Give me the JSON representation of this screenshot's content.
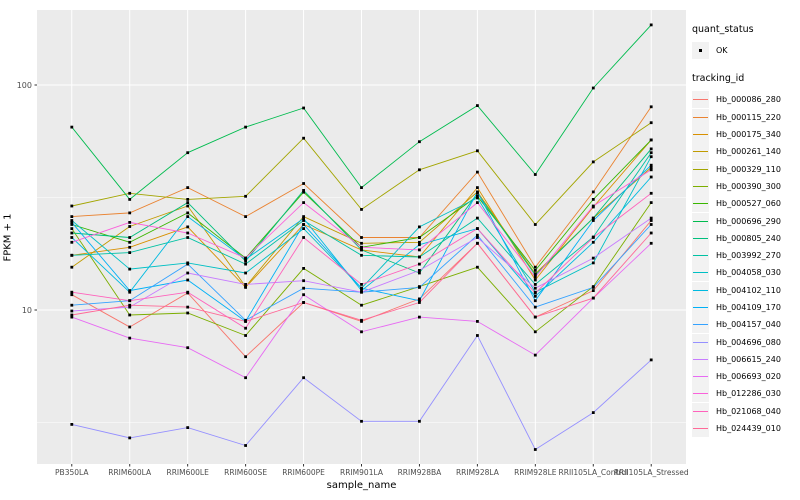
{
  "figure": {
    "colors": {
      "panel_bg": "#EBEBEB",
      "grid": "#FFFFFF",
      "tick_text": "#4D4D4D",
      "tick_mark": "#333333",
      "point": "#000000",
      "legend_key_bg": "#F2F2F2"
    },
    "legend": {
      "quant_status_title": "quant_status",
      "quant_ok_label": "OK",
      "tracking_id_title": "tracking_id"
    }
  },
  "chart_data": {
    "type": "line",
    "title": "",
    "xlabel": "sample_name",
    "ylabel": "FPKM + 1",
    "log_y": true,
    "ylim": [
      2.1,
      213
    ],
    "y_major_ticks": [
      10,
      100
    ],
    "y_tick_labels": [
      "10",
      "100"
    ],
    "y_minor_gridlines": [
      3.1623,
      31.623
    ],
    "grid": true,
    "legend_position": "right",
    "point_marker": "black-square (quant_status = OK)",
    "categories": [
      "PB350LA",
      "RRIM600LA",
      "RRIM600LE",
      "RRIM600SE",
      "RRIM600PE",
      "RRIM901LA",
      "RRIM928BA",
      "RRIM928LA",
      "RRIM928LE",
      "RRII105LA_Control",
      "RRII105LA_Stressed"
    ],
    "series": [
      {
        "name": "Hb_000086_280",
        "color": "#F8766D",
        "values": [
          11.7,
          8.4,
          11.9,
          6.2,
          10.8,
          8.9,
          11.2,
          19.8,
          9.3,
          12.2,
          25
        ]
      },
      {
        "name": "Hb_000115_220",
        "color": "#EA8331",
        "values": [
          26,
          27,
          35,
          26,
          36.5,
          21,
          21,
          41,
          15.5,
          33.5,
          80
        ]
      },
      {
        "name": "Hb_000175_340",
        "color": "#D89000",
        "values": [
          17.5,
          19,
          23.4,
          12.6,
          24,
          18.5,
          17.2,
          35,
          13.6,
          28.7,
          57
        ]
      },
      {
        "name": "Hb_000261_140",
        "color": "#C09B00",
        "values": [
          15.5,
          23.5,
          29,
          12.7,
          26,
          19.8,
          20,
          33.5,
          14.5,
          25.6,
          43
        ]
      },
      {
        "name": "Hb_000329_110",
        "color": "#A3A500",
        "values": [
          29,
          33,
          31,
          32,
          58,
          28,
          42,
          51,
          24,
          45.5,
          68
        ]
      },
      {
        "name": "Hb_000390_300",
        "color": "#7CAE00",
        "values": [
          23,
          9.5,
          9.7,
          7.7,
          15.3,
          10.5,
          12.7,
          15.5,
          8.0,
          12.7,
          30
        ]
      },
      {
        "name": "Hb_000527_060",
        "color": "#39B600",
        "values": [
          24,
          20,
          27,
          17,
          33.4,
          19,
          21,
          32,
          15,
          31,
          57
        ]
      },
      {
        "name": "Hb_000696_290",
        "color": "#00BB4E",
        "values": [
          65,
          31,
          50,
          65,
          79,
          35,
          56,
          81,
          40,
          97,
          185
        ]
      },
      {
        "name": "Hb_000805_240",
        "color": "#00BF7D",
        "values": [
          22,
          21,
          30,
          16.5,
          34,
          18.5,
          14.6,
          33,
          14.3,
          25.6,
          52
        ]
      },
      {
        "name": "Hb_003992_270",
        "color": "#00C1A3",
        "values": [
          17.5,
          18,
          21,
          16,
          25,
          17.5,
          17.2,
          25.6,
          13,
          21.1,
          50
        ]
      },
      {
        "name": "Hb_004058_030",
        "color": "#00BFC4",
        "values": [
          25,
          15.2,
          16.2,
          14.6,
          23,
          12.5,
          23.4,
          31.5,
          12,
          16.2,
          48
        ]
      },
      {
        "name": "Hb_004102_110",
        "color": "#00BAE0",
        "values": [
          21,
          12,
          26,
          16.8,
          25.5,
          12.2,
          19.5,
          23,
          11.5,
          20,
          39
        ]
      },
      {
        "name": "Hb_004109_170",
        "color": "#00B0F6",
        "values": [
          24.5,
          12.2,
          13.6,
          8.9,
          24,
          12.5,
          11,
          33.5,
          11,
          25,
          44
        ]
      },
      {
        "name": "Hb_004157_040",
        "color": "#35A2FF",
        "values": [
          10.5,
          11,
          16,
          9.0,
          12.5,
          12,
          12.6,
          21.5,
          10.3,
          12.6,
          24
        ]
      },
      {
        "name": "Hb_004696_080",
        "color": "#9590FF",
        "values": [
          3.1,
          2.7,
          3.0,
          2.5,
          5.0,
          3.2,
          3.2,
          7.7,
          2.4,
          3.5,
          6.0
        ]
      },
      {
        "name": "Hb_006615_240",
        "color": "#C77CFF",
        "values": [
          9.9,
          10.3,
          14.6,
          13,
          13.5,
          12,
          15,
          21,
          12.5,
          17,
          25.6
        ]
      },
      {
        "name": "Hb_006693_020",
        "color": "#E76BF3",
        "values": [
          9.3,
          7.5,
          6.8,
          5.0,
          11.7,
          8.0,
          9.3,
          8.9,
          6.3,
          11.3,
          19.8
        ]
      },
      {
        "name": "Hb_012286_030",
        "color": "#FA62DB",
        "values": [
          20,
          24.5,
          22,
          17,
          30,
          19,
          18.5,
          30,
          14,
          29,
          42
        ]
      },
      {
        "name": "Hb_021068_040",
        "color": "#FF62BC",
        "values": [
          12,
          11,
          12,
          8.3,
          21,
          13,
          16,
          23,
          11.9,
          21,
          33
        ]
      },
      {
        "name": "Hb_024439_010",
        "color": "#FF6A98",
        "values": [
          9.5,
          10.5,
          10.3,
          8.9,
          10.8,
          9.0,
          10.8,
          19.8,
          9.3,
          11.3,
          22
        ]
      }
    ]
  }
}
